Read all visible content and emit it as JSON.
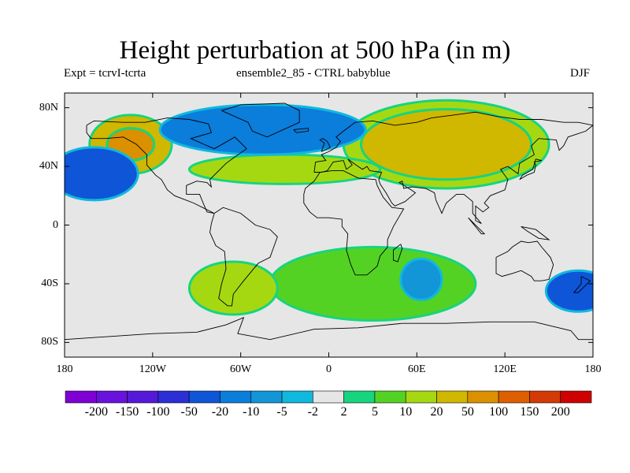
{
  "chart_data": {
    "type": "heatmap",
    "title": "Height perturbation at 500 hPa (in m)",
    "subtitle_left": "Expt = tcrvI-tcrta",
    "subtitle_center": "ensemble2_85 - CTRL babyblue",
    "subtitle_right": "DJF",
    "xlabel": "",
    "ylabel": "",
    "xlim": [
      -180,
      180
    ],
    "ylim": [
      -90,
      90
    ],
    "x_ticks": [
      {
        "value": -180,
        "label": "180"
      },
      {
        "value": -120,
        "label": "120W"
      },
      {
        "value": -60,
        "label": "60W"
      },
      {
        "value": 0,
        "label": "0"
      },
      {
        "value": 60,
        "label": "60E"
      },
      {
        "value": 120,
        "label": "120E"
      },
      {
        "value": 180,
        "label": "180"
      }
    ],
    "y_ticks": [
      {
        "value": 80,
        "label": "80N"
      },
      {
        "value": 40,
        "label": "40N"
      },
      {
        "value": 0,
        "label": "0"
      },
      {
        "value": -40,
        "label": "40S"
      },
      {
        "value": -80,
        "label": "80S"
      }
    ],
    "colorbar": {
      "levels": [
        "-200",
        "-150",
        "-100",
        "-50",
        "-20",
        "-10",
        "-5",
        "-2",
        "2",
        "5",
        "10",
        "20",
        "50",
        "100",
        "150",
        "200"
      ],
      "colors": [
        "#7f00d4",
        "#6a12dd",
        "#5519d9",
        "#2c2ed6",
        "#0e55d8",
        "#0b7ddb",
        "#1296d8",
        "#10b8de",
        "#e6e6e6",
        "#17d47f",
        "#54d224",
        "#a6d812",
        "#d0b700",
        "#db9000",
        "#df5f00",
        "#d43a06",
        "#cf0000"
      ]
    },
    "regions": [
      {
        "desc": "North Pacific / Alaska ridge",
        "lon": -135,
        "lat": 55,
        "rx": 28,
        "ry": 20,
        "level": 12
      },
      {
        "desc": "North Pacific ridge core",
        "lon": -135,
        "lat": 55,
        "rx": 16,
        "ry": 11,
        "level": 13
      },
      {
        "desc": "Eurasian ridge",
        "lon": 80,
        "lat": 55,
        "rx": 70,
        "ry": 30,
        "level": 11
      },
      {
        "desc": "Eurasian ridge core",
        "lon": 80,
        "lat": 55,
        "rx": 58,
        "ry": 24,
        "level": 12
      },
      {
        "desc": "Atlantic band",
        "lon": -30,
        "lat": 38,
        "rx": 65,
        "ry": 10,
        "level": 11
      },
      {
        "desc": "Canada-Atlantic trough",
        "lon": -45,
        "lat": 65,
        "rx": 70,
        "ry": 17,
        "level": 5
      },
      {
        "desc": "East Pacific trough",
        "lon": -160,
        "lat": 35,
        "rx": 30,
        "ry": 18,
        "level": 4
      },
      {
        "desc": "Southern Africa high",
        "lon": 30,
        "lat": -40,
        "rx": 70,
        "ry": 25,
        "level": 10
      },
      {
        "desc": "South Atlantic high",
        "lon": -65,
        "lat": -43,
        "rx": 30,
        "ry": 18,
        "level": 11
      },
      {
        "desc": "South Indian low",
        "lon": 63,
        "lat": -37,
        "rx": 14,
        "ry": 14,
        "level": 6
      },
      {
        "desc": "South Pacific low",
        "lon": 170,
        "lat": -45,
        "rx": 22,
        "ry": 14,
        "level": 4
      }
    ]
  }
}
